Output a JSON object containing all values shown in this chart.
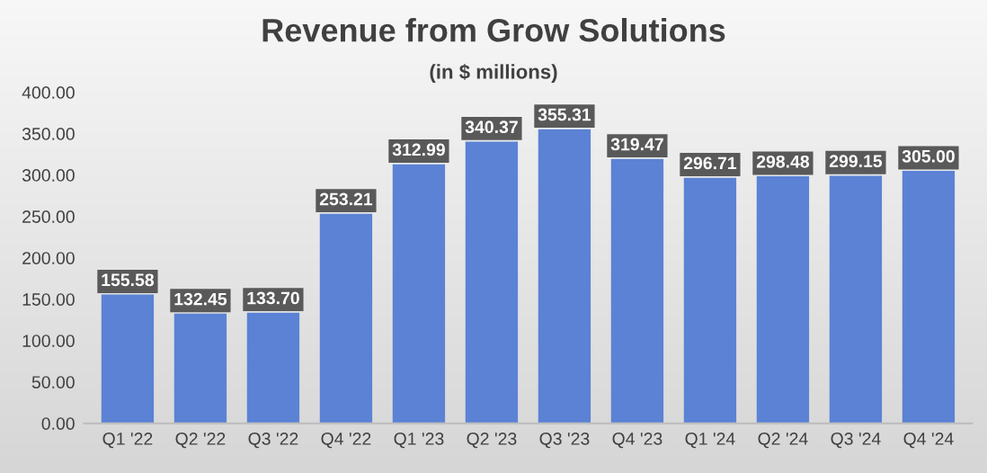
{
  "chart_data": {
    "type": "bar",
    "title": "Revenue from Grow Solutions",
    "subtitle": "(in $ millions)",
    "categories": [
      "Q1 '22",
      "Q2 '22",
      "Q3 '22",
      "Q4 '22",
      "Q1 '23",
      "Q2 '23",
      "Q3 '23",
      "Q4 '23",
      "Q1 '24",
      "Q2 '24",
      "Q3 '24",
      "Q4 '24"
    ],
    "values": [
      155.58,
      132.45,
      133.7,
      253.21,
      312.99,
      340.37,
      355.31,
      319.47,
      296.71,
      298.48,
      299.15,
      305.0
    ],
    "value_labels": [
      "155.58",
      "132.45",
      "133.70",
      "253.21",
      "312.99",
      "340.37",
      "355.31",
      "319.47",
      "296.71",
      "298.48",
      "299.15",
      "305.00"
    ],
    "color": "#5b82d4",
    "ylim": [
      0,
      400
    ],
    "yticks": [
      {
        "value": 0,
        "label": "0.00"
      },
      {
        "value": 50,
        "label": "50.00"
      },
      {
        "value": 100,
        "label": "100.00"
      },
      {
        "value": 150,
        "label": "150.00"
      },
      {
        "value": 200,
        "label": "200.00"
      },
      {
        "value": 250,
        "label": "250.00"
      },
      {
        "value": 300,
        "label": "300.00"
      },
      {
        "value": 350,
        "label": "350.00"
      },
      {
        "value": 400,
        "label": "400.00"
      }
    ],
    "grid": false
  }
}
